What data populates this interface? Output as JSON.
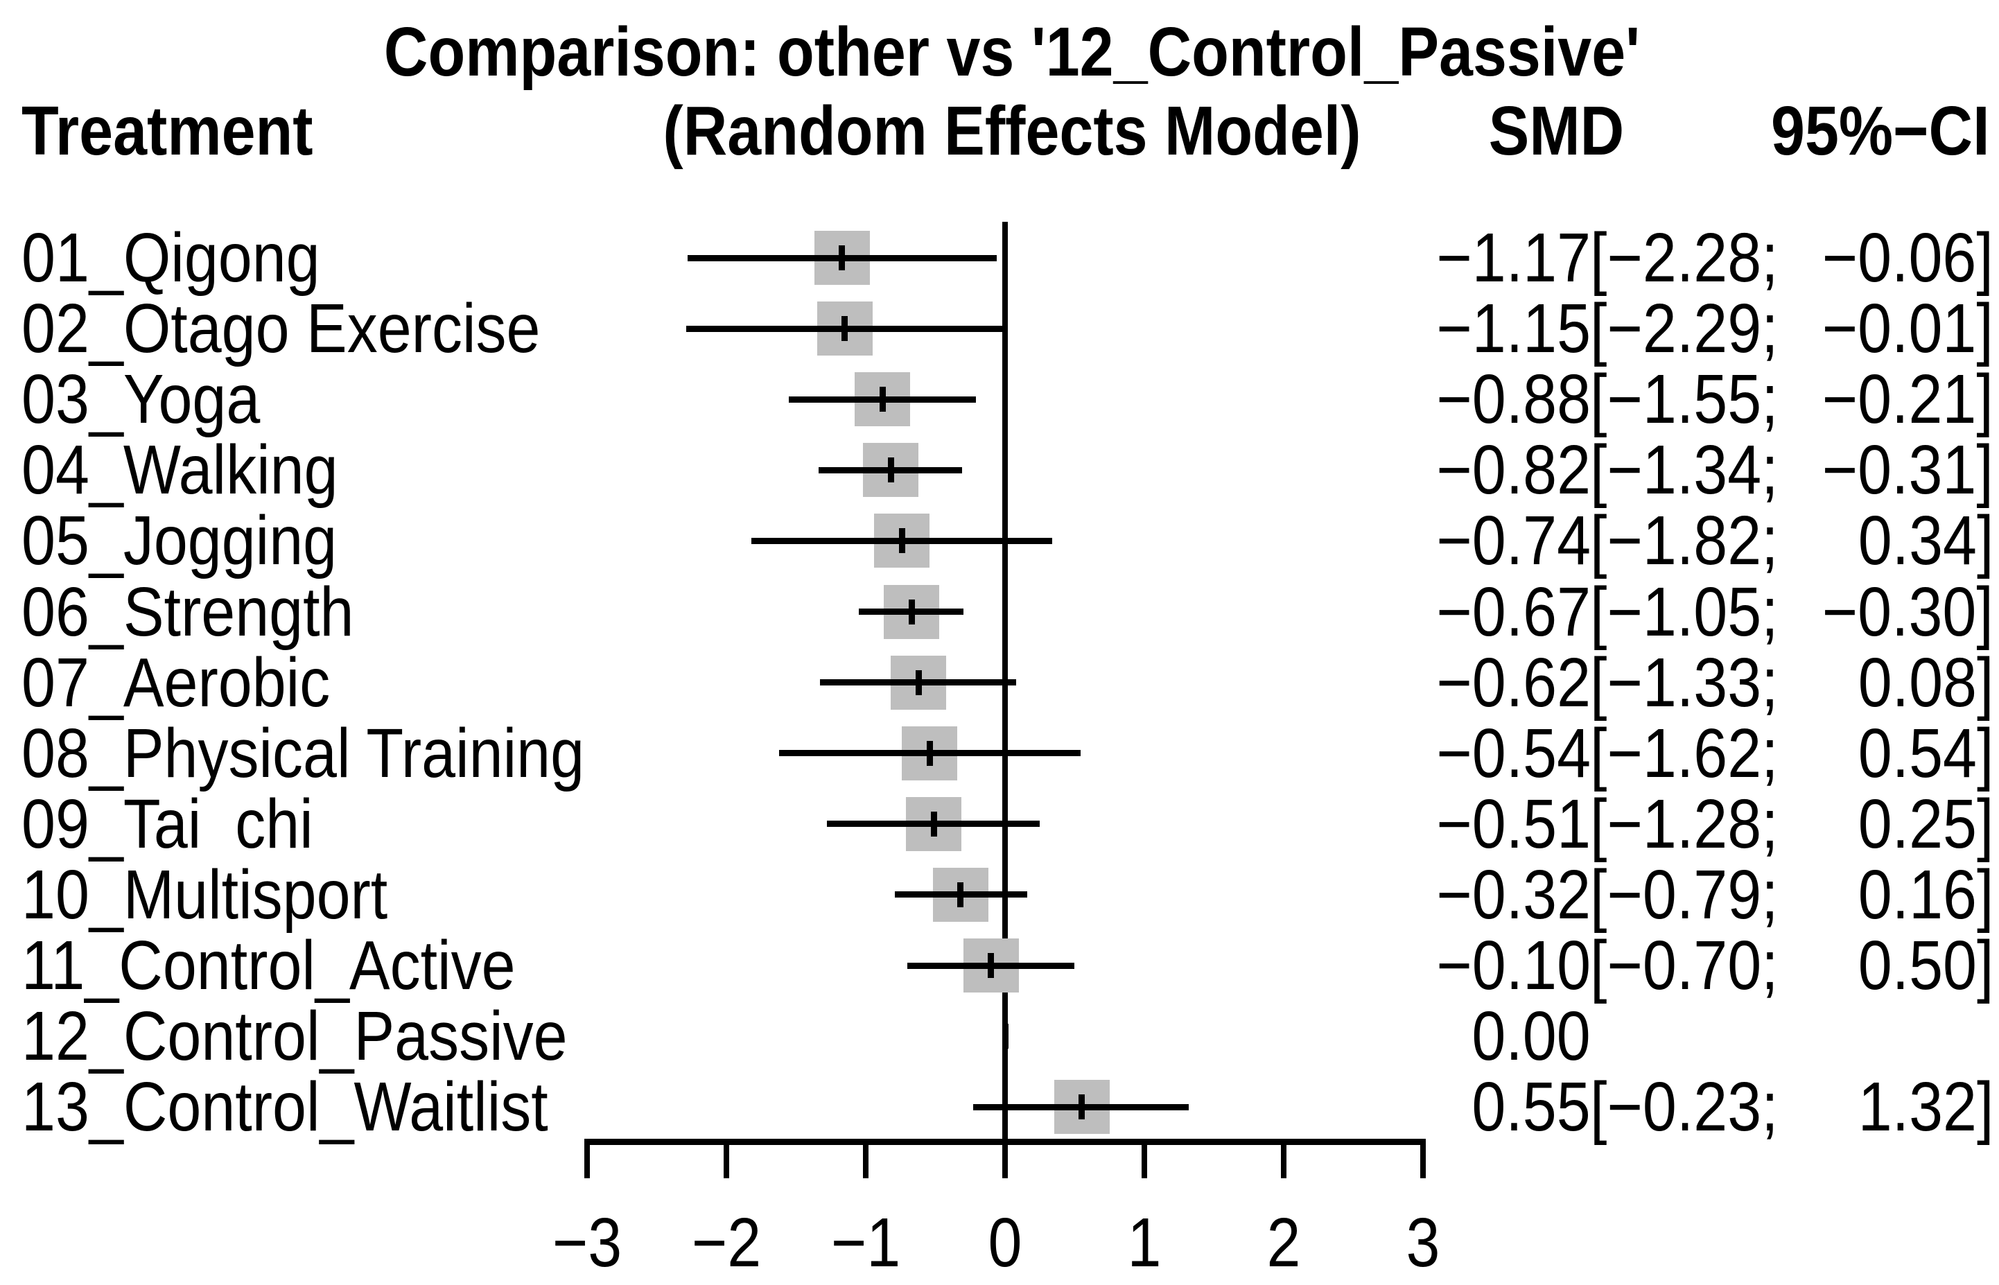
{
  "header": {
    "title": "Comparison: other vs '12_Control_Passive'",
    "subtitle": "(Random Effects Model)",
    "col_treatment": "Treatment",
    "col_smd": "SMD",
    "col_ci": "95%−CI"
  },
  "chart_data": {
    "type": "scatter",
    "plot_style": "forest",
    "title": "Comparison: other vs '12_Control_Passive'",
    "subtitle": "(Random Effects Model)",
    "effect_measure": "SMD",
    "reference_treatment": "12_Control_Passive",
    "reference_line_x": 0,
    "xlim": [
      -3,
      3
    ],
    "x_ticks": [
      -3,
      -2,
      -1,
      0,
      1,
      2,
      3
    ],
    "x_tick_labels": [
      "−3",
      "−2",
      "−1",
      "0",
      "1",
      "2",
      "3"
    ],
    "grid": false,
    "legend": false,
    "square_color": "#bebebe",
    "line_color": "#000000",
    "rows": [
      {
        "treatment": "01_Qigong",
        "smd": -1.17,
        "ci_lower": -2.28,
        "ci_upper": -0.06,
        "smd_label": "−1.17",
        "ci_lower_label": "[−2.28;",
        "ci_upper_label": "−0.06]"
      },
      {
        "treatment": "02_Otago Exercise",
        "smd": -1.15,
        "ci_lower": -2.29,
        "ci_upper": -0.01,
        "smd_label": "−1.15",
        "ci_lower_label": "[−2.29;",
        "ci_upper_label": "−0.01]"
      },
      {
        "treatment": "03_Yoga",
        "smd": -0.88,
        "ci_lower": -1.55,
        "ci_upper": -0.21,
        "smd_label": "−0.88",
        "ci_lower_label": "[−1.55;",
        "ci_upper_label": "−0.21]"
      },
      {
        "treatment": "04_Walking",
        "smd": -0.82,
        "ci_lower": -1.34,
        "ci_upper": -0.31,
        "smd_label": "−0.82",
        "ci_lower_label": "[−1.34;",
        "ci_upper_label": "−0.31]"
      },
      {
        "treatment": "05_Jogging",
        "smd": -0.74,
        "ci_lower": -1.82,
        "ci_upper": 0.34,
        "smd_label": "−0.74",
        "ci_lower_label": "[−1.82;",
        "ci_upper_label": "0.34]"
      },
      {
        "treatment": "06_Strength",
        "smd": -0.67,
        "ci_lower": -1.05,
        "ci_upper": -0.3,
        "smd_label": "−0.67",
        "ci_lower_label": "[−1.05;",
        "ci_upper_label": "−0.30]"
      },
      {
        "treatment": "07_Aerobic",
        "smd": -0.62,
        "ci_lower": -1.33,
        "ci_upper": 0.08,
        "smd_label": "−0.62",
        "ci_lower_label": "[−1.33;",
        "ci_upper_label": "0.08]"
      },
      {
        "treatment": "08_Physical Training",
        "smd": -0.54,
        "ci_lower": -1.62,
        "ci_upper": 0.54,
        "smd_label": "−0.54",
        "ci_lower_label": "[−1.62;",
        "ci_upper_label": "0.54]"
      },
      {
        "treatment": "09_Tai  chi",
        "smd": -0.51,
        "ci_lower": -1.28,
        "ci_upper": 0.25,
        "smd_label": "−0.51",
        "ci_lower_label": "[−1.28;",
        "ci_upper_label": "0.25]"
      },
      {
        "treatment": "10_Multisport",
        "smd": -0.32,
        "ci_lower": -0.79,
        "ci_upper": 0.16,
        "smd_label": "−0.32",
        "ci_lower_label": "[−0.79;",
        "ci_upper_label": "0.16]"
      },
      {
        "treatment": "11_Control_Active",
        "smd": -0.1,
        "ci_lower": -0.7,
        "ci_upper": 0.5,
        "smd_label": "−0.10",
        "ci_lower_label": "[−0.70;",
        "ci_upper_label": "0.50]"
      },
      {
        "treatment": "12_Control_Passive",
        "smd": 0.0,
        "ci_lower": null,
        "ci_upper": null,
        "smd_label": "0.00",
        "ci_lower_label": "",
        "ci_upper_label": ""
      },
      {
        "treatment": "13_Control_Waitlist",
        "smd": 0.55,
        "ci_lower": -0.23,
        "ci_upper": 1.32,
        "smd_label": "0.55",
        "ci_lower_label": "[−0.23;",
        "ci_upper_label": "1.32]"
      }
    ]
  }
}
